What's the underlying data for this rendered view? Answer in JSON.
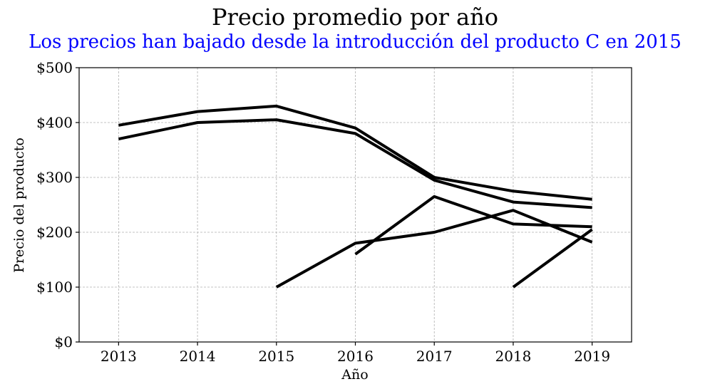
{
  "chart_data": {
    "type": "line",
    "title": "Precio promedio por año",
    "subtitle": "Los precios han bajado desde la introducción del producto C en 2015",
    "xlabel": "Año",
    "ylabel": "Precio del producto",
    "x": [
      2013,
      2014,
      2015,
      2016,
      2017,
      2018,
      2019
    ],
    "x_tick_labels": [
      "2013",
      "2014",
      "2015",
      "2016",
      "2017",
      "2018",
      "2019"
    ],
    "xlim": [
      2012.5,
      2019.5
    ],
    "ylim": [
      0,
      500
    ],
    "y_ticks": [
      0,
      100,
      200,
      300,
      400,
      500
    ],
    "y_tick_labels": [
      "$0",
      "$100",
      "$200",
      "$300",
      "$400",
      "$500"
    ],
    "grid": true,
    "series": [
      {
        "x": [
          2013,
          2014,
          2015,
          2016,
          2017,
          2018,
          2019
        ],
        "values": [
          395,
          420,
          430,
          390,
          300,
          275,
          260
        ],
        "color": "#000000"
      },
      {
        "x": [
          2013,
          2014,
          2015,
          2016,
          2017,
          2018,
          2019
        ],
        "values": [
          370,
          400,
          405,
          380,
          295,
          255,
          245
        ],
        "color": "#000000"
      },
      {
        "x": [
          2015,
          2016,
          2017,
          2018,
          2019
        ],
        "values": [
          100,
          180,
          200,
          240,
          182
        ],
        "color": "#000000"
      },
      {
        "x": [
          2016,
          2017,
          2018,
          2019
        ],
        "values": [
          160,
          265,
          215,
          210
        ],
        "color": "#000000"
      },
      {
        "x": [
          2018,
          2019
        ],
        "values": [
          100,
          205
        ],
        "color": "#000000"
      }
    ],
    "colors": {
      "title": "#000000",
      "subtitle": "#0000ff",
      "grid": "#b0b0b0",
      "lines": "#000000"
    }
  }
}
